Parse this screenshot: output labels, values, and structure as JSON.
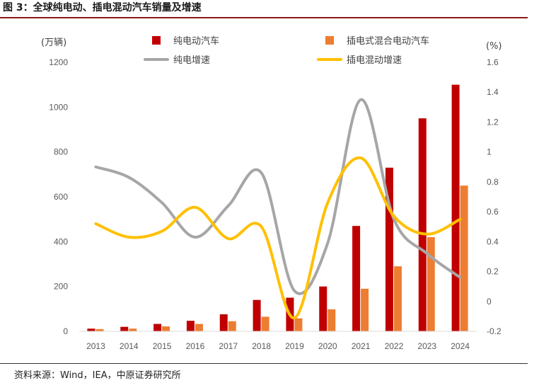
{
  "figure": {
    "title": "图 3：全球纯电动、插电混动汽车销量及增速",
    "source": "资料来源：Wind，IEA，中原证券研究所"
  },
  "colors": {
    "bev_bar": "#C00000",
    "phev_bar": "#ED7D31",
    "bev_growth": "#A6A6A6",
    "phev_growth": "#FFC000",
    "axis_text": "#595959"
  },
  "chart_data": {
    "type": "bar",
    "categories": [
      "2013",
      "2014",
      "2015",
      "2016",
      "2017",
      "2018",
      "2019",
      "2020",
      "2021",
      "2022",
      "2023",
      "2024"
    ],
    "series": [
      {
        "name": "纯电动汽车",
        "kind": "bar",
        "axis": "left",
        "values": [
          12,
          20,
          33,
          47,
          76,
          140,
          150,
          200,
          470,
          730,
          950,
          1100
        ]
      },
      {
        "name": "插电式混合电动汽车",
        "kind": "bar",
        "axis": "left",
        "values": [
          10,
          12,
          22,
          33,
          45,
          65,
          58,
          98,
          190,
          290,
          420,
          650
        ]
      },
      {
        "name": "纯电增速",
        "kind": "line",
        "axis": "right",
        "values": [
          0.9,
          0.83,
          0.66,
          0.43,
          0.64,
          0.86,
          0.07,
          0.39,
          1.35,
          0.55,
          0.32,
          0.16
        ]
      },
      {
        "name": "插电混动增速",
        "kind": "line",
        "axis": "right",
        "values": [
          0.52,
          0.43,
          0.47,
          0.63,
          0.42,
          0.5,
          -0.11,
          0.66,
          0.96,
          0.57,
          0.45,
          0.55
        ]
      }
    ],
    "y_left": {
      "unit": "(万辆)",
      "min": 0,
      "max": 1200,
      "ticks": [
        "0",
        "200",
        "400",
        "600",
        "800",
        "1000",
        "1200"
      ]
    },
    "y_right": {
      "unit": "(%)",
      "min": -0.2,
      "max": 1.6,
      "ticks": [
        "-0.2",
        "0",
        "0.2",
        "0.4",
        "0.6",
        "0.8",
        "1",
        "1.2",
        "1.4",
        "1.6"
      ]
    },
    "legend_position": "top",
    "grid": false
  }
}
